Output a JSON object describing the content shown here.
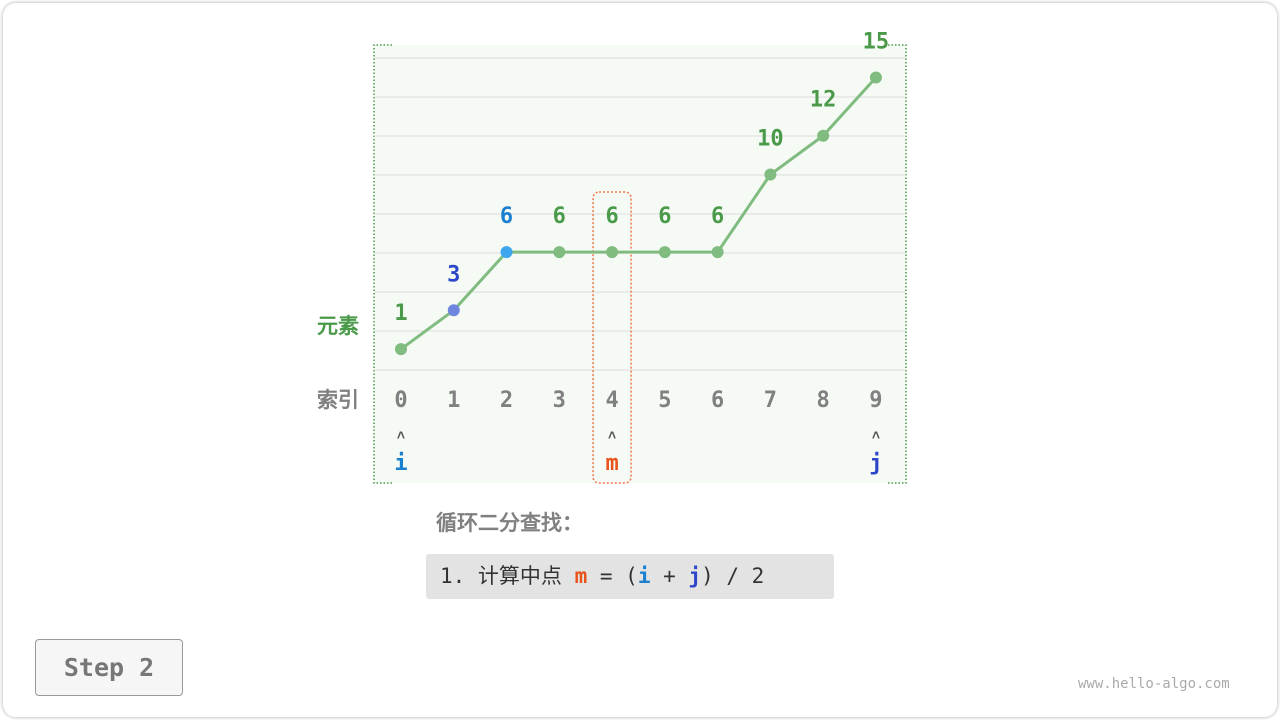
{
  "diagram": {
    "row_labels": {
      "elements": "元素",
      "index": "索引"
    },
    "values": [
      1,
      3,
      6,
      6,
      6,
      6,
      6,
      10,
      12,
      15
    ],
    "indices": [
      "0",
      "1",
      "2",
      "3",
      "4",
      "5",
      "6",
      "7",
      "8",
      "9"
    ],
    "pointers": [
      {
        "label": "i",
        "index": 0,
        "color": "#1a7fcf"
      },
      {
        "label": "m",
        "index": 4,
        "color": "#e8531a"
      },
      {
        "label": "j",
        "index": 9,
        "color": "#2e47c9"
      }
    ],
    "pointer_arrow": "˄",
    "highlight_index": 4,
    "colors": {
      "line": "#80bb80",
      "value_text": "#4a9a4a",
      "index_text": "#808080",
      "point_1": "#6f86e0",
      "point_2": "#3ea6ee",
      "label_1": "#2e47c9",
      "label_2": "#1a7fcf",
      "panel": "#f5faf5",
      "highlight": "#f0764a"
    }
  },
  "caption": "循环二分查找：",
  "code": {
    "prefix": "1. 计算中点 ",
    "m": "m",
    "eq": " = (",
    "i": "i",
    "plus": " + ",
    "j": "j",
    "suffix": ") / 2"
  },
  "step_label": "Step 2",
  "watermark": "www.hello-algo.com"
}
